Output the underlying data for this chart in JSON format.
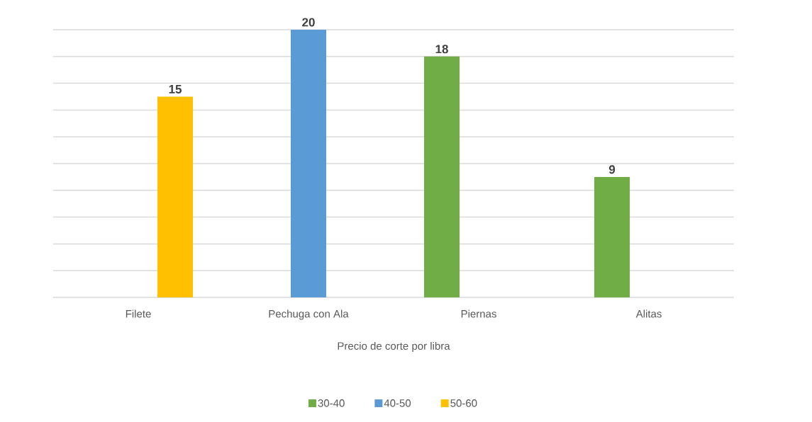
{
  "chart_data": {
    "type": "bar",
    "categories": [
      "Filete",
      "Pechuga con Ala",
      "Piernas",
      "Alitas"
    ],
    "series": [
      {
        "name": "30-40",
        "color": "#70ad47",
        "values": [
          null,
          null,
          18,
          9
        ]
      },
      {
        "name": "40-50",
        "color": "#5b9bd5",
        "values": [
          null,
          20,
          null,
          null
        ]
      },
      {
        "name": "50-60",
        "color": "#ffc000",
        "values": [
          15,
          null,
          null,
          null
        ]
      }
    ],
    "xlabel": "Precio de corte por libra",
    "ylim": [
      0,
      20
    ],
    "yticks": [
      {
        "value": 0,
        "label": null
      },
      {
        "value": 2,
        "label": null
      },
      {
        "value": 4,
        "label": null
      },
      {
        "value": 6,
        "label": null
      },
      {
        "value": 8,
        "label": null
      },
      {
        "value": 10,
        "label": null
      },
      {
        "value": 12,
        "label": null
      },
      {
        "value": 14,
        "label": null
      },
      {
        "value": 16,
        "label": null
      },
      {
        "value": 18,
        "label": null
      },
      {
        "value": 20,
        "label": null
      }
    ],
    "tick_labels": "x",
    "grid": "y",
    "legend": "bottom",
    "data_labels": true
  }
}
